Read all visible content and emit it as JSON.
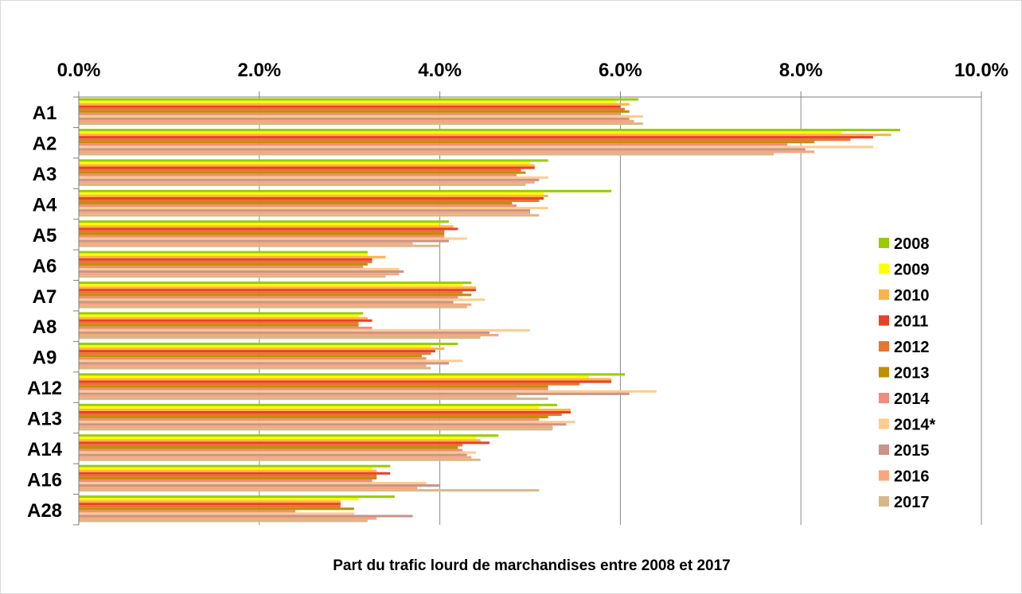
{
  "chart_data": {
    "type": "bar",
    "orientation": "horizontal",
    "title": "Part du trafic lourd de marchandises entre 2008 et 2017",
    "xlim": [
      0,
      10
    ],
    "x_tick_labels": [
      "0.0%",
      "2.0%",
      "4.0%",
      "6.0%",
      "8.0%",
      "10.0%"
    ],
    "grid": "vertical major gridlines",
    "x_axis_position": "top",
    "legend_position": "right",
    "categories": [
      "A1",
      "A2",
      "A3",
      "A4",
      "A5",
      "A6",
      "A7",
      "A8",
      "A9",
      "A12",
      "A13",
      "A14",
      "A16",
      "A28"
    ],
    "series": [
      {
        "name": "2008",
        "color": "#99cc00",
        "values": [
          6.2,
          9.1,
          5.2,
          5.9,
          4.1,
          3.2,
          4.35,
          3.15,
          4.2,
          6.05,
          5.3,
          4.65,
          3.45,
          3.5
        ]
      },
      {
        "name": "2009",
        "color": "#ffff00",
        "values": [
          5.95,
          8.45,
          5.0,
          5.15,
          4.0,
          3.2,
          4.25,
          3.1,
          3.9,
          5.65,
          5.1,
          4.4,
          3.25,
          3.1
        ]
      },
      {
        "name": "2010",
        "color": "#ffb347",
        "values": [
          6.1,
          9.0,
          5.05,
          5.2,
          4.15,
          3.4,
          4.4,
          3.2,
          4.05,
          5.9,
          5.45,
          4.45,
          3.3,
          2.9
        ]
      },
      {
        "name": "2011",
        "color": "#e8412b",
        "values": [
          6.0,
          8.8,
          5.05,
          5.15,
          4.2,
          3.25,
          4.4,
          3.25,
          3.95,
          5.9,
          5.45,
          4.55,
          3.45,
          2.9
        ]
      },
      {
        "name": "2012",
        "color": "#e87530",
        "values": [
          6.05,
          8.55,
          4.9,
          5.1,
          4.05,
          3.25,
          4.25,
          3.1,
          3.9,
          5.55,
          5.35,
          4.25,
          3.3,
          2.9
        ]
      },
      {
        "name": "2013",
        "color": "#bf8f00",
        "values": [
          6.1,
          8.15,
          4.95,
          4.8,
          4.05,
          3.2,
          4.35,
          3.1,
          3.8,
          5.2,
          5.2,
          4.2,
          3.3,
          3.05
        ]
      },
      {
        "name": "2014",
        "color": "#f08c7c",
        "values": [
          6.0,
          7.85,
          4.85,
          4.85,
          4.05,
          3.15,
          4.2,
          3.25,
          3.85,
          5.2,
          5.1,
          4.25,
          3.25,
          2.4
        ]
      },
      {
        "name": "2014*",
        "color": "#ffcc8c",
        "values": [
          6.25,
          8.8,
          5.2,
          5.2,
          4.3,
          3.55,
          4.5,
          5.0,
          4.25,
          6.4,
          5.5,
          4.4,
          3.85,
          3.05
        ]
      },
      {
        "name": "2015",
        "color": "#c9948a",
        "values": [
          6.1,
          8.05,
          5.1,
          5.0,
          4.1,
          3.6,
          4.15,
          4.55,
          4.1,
          6.1,
          5.4,
          4.3,
          4.0,
          3.7
        ]
      },
      {
        "name": "2016",
        "color": "#f9a67e",
        "values": [
          6.15,
          8.15,
          5.05,
          5.0,
          3.7,
          3.55,
          4.35,
          4.65,
          3.85,
          4.85,
          5.25,
          4.35,
          3.75,
          3.3
        ]
      },
      {
        "name": "2017",
        "color": "#d8b888",
        "values": [
          6.25,
          7.7,
          4.95,
          5.1,
          4.0,
          3.4,
          4.3,
          4.45,
          3.9,
          5.2,
          5.25,
          4.45,
          5.1,
          3.2
        ]
      }
    ]
  }
}
